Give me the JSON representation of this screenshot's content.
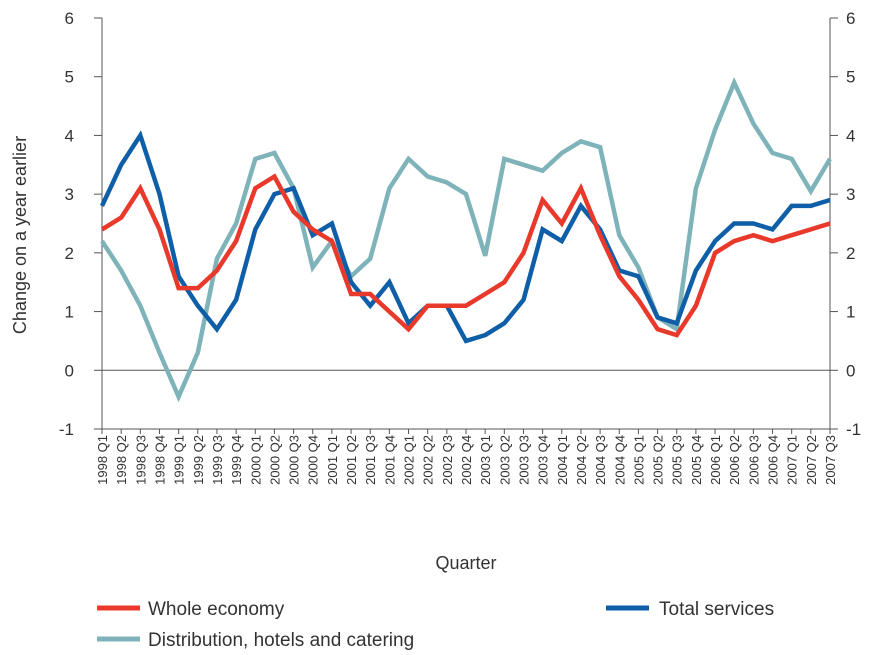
{
  "chart_data": {
    "type": "line",
    "xlabel": "Quarter",
    "ylabel": "Change on a year earlier",
    "ylim": [
      -1,
      6
    ],
    "yticks": [
      -1,
      0,
      1,
      2,
      3,
      4,
      5,
      6
    ],
    "legend_position": "bottom",
    "categories": [
      "1998 Q1",
      "1998 Q2",
      "1998 Q3",
      "1998 Q4",
      "1999 Q1",
      "1999 Q2",
      "1999 Q3",
      "1999 Q4",
      "2000 Q1",
      "2000 Q2",
      "2000 Q3",
      "2000 Q4",
      "2001 Q1",
      "2001 Q2",
      "2001 Q3",
      "2001 Q4",
      "2002 Q1",
      "2002 Q2",
      "2002 Q3",
      "2002 Q4",
      "2003 Q1",
      "2003 Q2",
      "2003 Q3",
      "2003 Q4",
      "2004 Q1",
      "2004 Q2",
      "2004 Q3",
      "2004 Q4",
      "2005 Q1",
      "2005 Q2",
      "2005 Q3",
      "2005 Q4",
      "2006 Q1",
      "2006 Q2",
      "2006 Q3",
      "2006 Q4",
      "2007 Q1",
      "2007 Q2",
      "2007 Q3"
    ],
    "series": [
      {
        "name": "Distribution, hotels and catering",
        "color": "#7fb3ba",
        "values": [
          2.2,
          1.7,
          1.1,
          0.3,
          -0.45,
          0.3,
          1.9,
          2.5,
          3.6,
          3.7,
          3.1,
          1.75,
          2.2,
          1.6,
          1.9,
          3.1,
          3.6,
          3.3,
          3.2,
          3.0,
          1.95,
          3.6,
          3.5,
          3.4,
          3.7,
          3.9,
          3.8,
          2.3,
          1.75,
          0.9,
          0.7,
          3.1,
          4.1,
          4.9,
          4.2,
          3.7,
          3.6,
          3.05,
          3.6
        ]
      },
      {
        "name": "Total services",
        "color": "#0f5fa8",
        "values": [
          2.8,
          3.5,
          4.0,
          3.0,
          1.6,
          1.1,
          0.7,
          1.2,
          2.4,
          3.0,
          3.1,
          2.3,
          2.5,
          1.5,
          1.1,
          1.5,
          0.8,
          1.1,
          1.1,
          0.5,
          0.6,
          0.8,
          1.2,
          2.4,
          2.2,
          2.8,
          2.4,
          1.7,
          1.6,
          0.9,
          0.8,
          1.7,
          2.2,
          2.5,
          2.5,
          2.4,
          2.8,
          2.8,
          2.9
        ]
      },
      {
        "name": "Whole economy",
        "color": "#e8392b",
        "values": [
          2.4,
          2.6,
          3.1,
          2.4,
          1.4,
          1.4,
          1.7,
          2.2,
          3.1,
          3.3,
          2.7,
          2.4,
          2.2,
          1.3,
          1.3,
          1.0,
          0.7,
          1.1,
          1.1,
          1.1,
          1.3,
          1.5,
          2.0,
          2.9,
          2.5,
          3.1,
          2.3,
          1.6,
          1.2,
          0.7,
          0.6,
          1.1,
          2.0,
          2.2,
          2.3,
          2.2,
          2.3,
          2.4,
          2.5
        ]
      }
    ],
    "legend": [
      {
        "label": "Whole economy",
        "color": "#e8392b"
      },
      {
        "label": "Total services",
        "color": "#0f5fa8"
      },
      {
        "label": "Distribution, hotels and catering",
        "color": "#7fb3ba"
      }
    ]
  }
}
